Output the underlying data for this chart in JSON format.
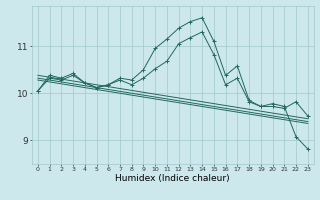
{
  "xlabel": "Humidex (Indice chaleur)",
  "ylabel": "",
  "bg_color": "#cce8ec",
  "grid_color": "#a0c8cc",
  "line_color": "#206860",
  "x_values": [
    0,
    1,
    2,
    3,
    4,
    5,
    6,
    7,
    8,
    9,
    10,
    11,
    12,
    13,
    14,
    15,
    16,
    17,
    18,
    19,
    20,
    21,
    22,
    23
  ],
  "series1": [
    10.05,
    10.38,
    10.32,
    10.42,
    10.22,
    10.12,
    10.18,
    10.32,
    10.28,
    10.5,
    10.95,
    11.15,
    11.38,
    11.52,
    11.6,
    11.1,
    10.38,
    10.58,
    9.85,
    9.72,
    9.78,
    9.72,
    9.08,
    8.82
  ],
  "series2": [
    10.05,
    10.32,
    10.28,
    10.38,
    10.22,
    10.12,
    10.18,
    10.28,
    10.18,
    10.32,
    10.52,
    10.68,
    11.05,
    11.18,
    11.3,
    10.82,
    10.18,
    10.32,
    9.82,
    9.72,
    9.72,
    9.68,
    9.82,
    9.52
  ],
  "trend1": [
    10.38,
    10.34,
    10.3,
    10.26,
    10.22,
    10.18,
    10.14,
    10.1,
    10.06,
    10.02,
    9.98,
    9.94,
    9.9,
    9.86,
    9.82,
    9.78,
    9.74,
    9.7,
    9.66,
    9.62,
    9.58,
    9.54,
    9.5,
    9.46
  ],
  "trend2": [
    10.32,
    10.28,
    10.24,
    10.2,
    10.16,
    10.12,
    10.08,
    10.04,
    10.0,
    9.96,
    9.92,
    9.88,
    9.84,
    9.8,
    9.76,
    9.72,
    9.68,
    9.64,
    9.6,
    9.56,
    9.52,
    9.48,
    9.44,
    9.4
  ],
  "trend3": [
    10.28,
    10.24,
    10.2,
    10.16,
    10.12,
    10.08,
    10.04,
    10.0,
    9.96,
    9.92,
    9.88,
    9.84,
    9.8,
    9.76,
    9.72,
    9.68,
    9.64,
    9.6,
    9.56,
    9.52,
    9.48,
    9.44,
    9.4,
    9.36
  ],
  "yticks": [
    9,
    10,
    11
  ],
  "ylim": [
    8.5,
    11.85
  ],
  "xlim": [
    -0.5,
    23.5
  ]
}
